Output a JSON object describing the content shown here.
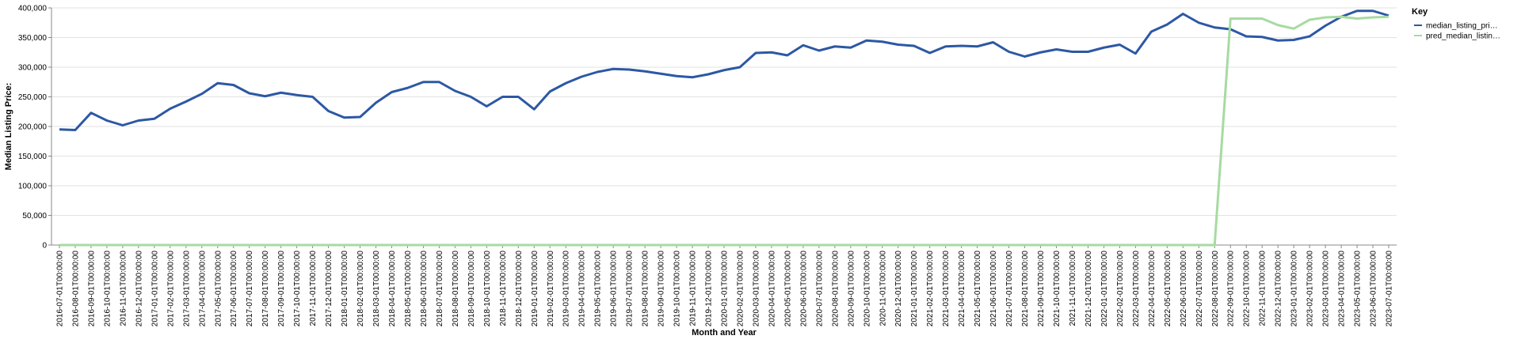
{
  "chart_data": {
    "type": "line",
    "x_label": "Month and Year",
    "y_label": "Median Listing Price:",
    "legend_title": "Key",
    "legend": "top-right-outside",
    "grid": true,
    "x": [
      "2016-07-01T00:00:00",
      "2016-08-01T00:00:00",
      "2016-09-01T00:00:00",
      "2016-10-01T00:00:00",
      "2016-11-01T00:00:00",
      "2016-12-01T00:00:00",
      "2017-01-01T00:00:00",
      "2017-02-01T00:00:00",
      "2017-03-01T00:00:00",
      "2017-04-01T00:00:00",
      "2017-05-01T00:00:00",
      "2017-06-01T00:00:00",
      "2017-07-01T00:00:00",
      "2017-08-01T00:00:00",
      "2017-09-01T00:00:00",
      "2017-10-01T00:00:00",
      "2017-11-01T00:00:00",
      "2017-12-01T00:00:00",
      "2018-01-01T00:00:00",
      "2018-02-01T00:00:00",
      "2018-03-01T00:00:00",
      "2018-04-01T00:00:00",
      "2018-05-01T00:00:00",
      "2018-06-01T00:00:00",
      "2018-07-01T00:00:00",
      "2018-08-01T00:00:00",
      "2018-09-01T00:00:00",
      "2018-10-01T00:00:00",
      "2018-11-01T00:00:00",
      "2018-12-01T00:00:00",
      "2019-01-01T00:00:00",
      "2019-02-01T00:00:00",
      "2019-03-01T00:00:00",
      "2019-04-01T00:00:00",
      "2019-05-01T00:00:00",
      "2019-06-01T00:00:00",
      "2019-07-01T00:00:00",
      "2019-08-01T00:00:00",
      "2019-09-01T00:00:00",
      "2019-10-01T00:00:00",
      "2019-11-01T00:00:00",
      "2019-12-01T00:00:00",
      "2020-01-01T00:00:00",
      "2020-02-01T00:00:00",
      "2020-03-01T00:00:00",
      "2020-04-01T00:00:00",
      "2020-05-01T00:00:00",
      "2020-06-01T00:00:00",
      "2020-07-01T00:00:00",
      "2020-08-01T00:00:00",
      "2020-09-01T00:00:00",
      "2020-10-01T00:00:00",
      "2020-11-01T00:00:00",
      "2020-12-01T00:00:00",
      "2021-01-01T00:00:00",
      "2021-02-01T00:00:00",
      "2021-03-01T00:00:00",
      "2021-04-01T00:00:00",
      "2021-05-01T00:00:00",
      "2021-06-01T00:00:00",
      "2021-07-01T00:00:00",
      "2021-08-01T00:00:00",
      "2021-09-01T00:00:00",
      "2021-10-01T00:00:00",
      "2021-11-01T00:00:00",
      "2021-12-01T00:00:00",
      "2022-01-01T00:00:00",
      "2022-02-01T00:00:00",
      "2022-03-01T00:00:00",
      "2022-04-01T00:00:00",
      "2022-05-01T00:00:00",
      "2022-06-01T00:00:00",
      "2022-07-01T00:00:00",
      "2022-08-01T00:00:00",
      "2022-09-01T00:00:00",
      "2022-10-01T00:00:00",
      "2022-11-01T00:00:00",
      "2022-12-01T00:00:00",
      "2023-01-01T00:00:00",
      "2023-02-01T00:00:00",
      "2023-03-01T00:00:00",
      "2023-04-01T00:00:00",
      "2023-05-01T00:00:00",
      "2023-06-01T00:00:00",
      "2023-07-01T00:00:00"
    ],
    "series": [
      {
        "name": "median_listing_pri…",
        "color": "#2c58a4",
        "values": [
          195000,
          194000,
          223000,
          210000,
          202000,
          210000,
          213000,
          230000,
          242000,
          255000,
          273000,
          270000,
          256000,
          251000,
          257000,
          253000,
          250000,
          226000,
          215000,
          216000,
          240000,
          258000,
          265000,
          275000,
          275000,
          260000,
          250000,
          234000,
          250000,
          250000,
          229000,
          259000,
          273000,
          284000,
          292000,
          297000,
          296000,
          293000,
          289000,
          285000,
          283000,
          288000,
          295000,
          300000,
          324000,
          325000,
          320000,
          337000,
          328000,
          335000,
          333000,
          345000,
          343000,
          338000,
          336000,
          324000,
          335000,
          336000,
          335000,
          342000,
          326000,
          318000,
          325000,
          330000,
          326000,
          326000,
          333000,
          338000,
          323000,
          360000,
          372000,
          390000,
          375000,
          367000,
          364000,
          352000,
          351000,
          345000,
          346000,
          352000,
          370000,
          385000,
          395000,
          395000,
          387000
        ]
      },
      {
        "name": "pred_median_listin…",
        "color": "#a6dba0",
        "values": [
          0,
          0,
          0,
          0,
          0,
          0,
          0,
          0,
          0,
          0,
          0,
          0,
          0,
          0,
          0,
          0,
          0,
          0,
          0,
          0,
          0,
          0,
          0,
          0,
          0,
          0,
          0,
          0,
          0,
          0,
          0,
          0,
          0,
          0,
          0,
          0,
          0,
          0,
          0,
          0,
          0,
          0,
          0,
          0,
          0,
          0,
          0,
          0,
          0,
          0,
          0,
          0,
          0,
          0,
          0,
          0,
          0,
          0,
          0,
          0,
          0,
          0,
          0,
          0,
          0,
          0,
          0,
          0,
          0,
          0,
          0,
          0,
          0,
          0,
          382000,
          382000,
          382000,
          371000,
          365000,
          380000,
          384000,
          385000,
          382000,
          384000,
          385000
        ]
      }
    ],
    "ylim": [
      0,
      400000
    ],
    "yticks": [
      0,
      {
        "value": 50000,
        "label": "50,000"
      },
      {
        "value": 100000,
        "label": "100,000"
      },
      {
        "value": 150000,
        "label": "150,000"
      },
      {
        "value": 200000,
        "label": "200,000"
      },
      {
        "value": 250000,
        "label": "250,000"
      },
      {
        "value": 300000,
        "label": "300,000"
      },
      {
        "value": 350000,
        "label": "350,000"
      },
      {
        "value": 400000,
        "label": "400,000"
      }
    ]
  }
}
